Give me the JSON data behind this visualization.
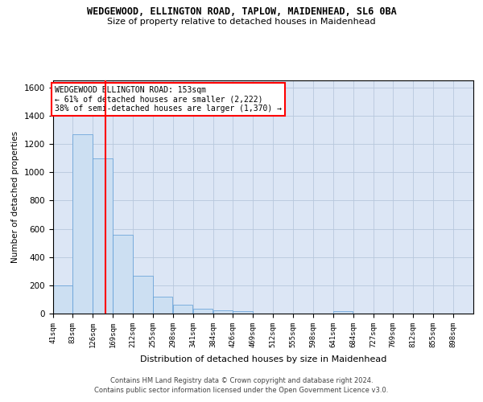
{
  "title": "WEDGEWOOD, ELLINGTON ROAD, TAPLOW, MAIDENHEAD, SL6 0BA",
  "subtitle": "Size of property relative to detached houses in Maidenhead",
  "xlabel": "Distribution of detached houses by size in Maidenhead",
  "ylabel": "Number of detached properties",
  "bar_color": "#ccdff2",
  "bar_edge_color": "#5b9bd5",
  "grid_color": "#b8c8dc",
  "bg_color": "#dce6f5",
  "annotation_box_text": "WEDGEWOOD ELLINGTON ROAD: 153sqm\n← 61% of detached houses are smaller (2,222)\n38% of semi-detached houses are larger (1,370) →",
  "annotation_box_color": "red",
  "vline_x": 153,
  "vline_color": "red",
  "footer1": "Contains HM Land Registry data © Crown copyright and database right 2024.",
  "footer2": "Contains public sector information licensed under the Open Government Licence v3.0.",
  "categories": [
    "41sqm",
    "83sqm",
    "126sqm",
    "169sqm",
    "212sqm",
    "255sqm",
    "298sqm",
    "341sqm",
    "384sqm",
    "426sqm",
    "469sqm",
    "512sqm",
    "555sqm",
    "598sqm",
    "641sqm",
    "684sqm",
    "727sqm",
    "769sqm",
    "812sqm",
    "855sqm",
    "898sqm"
  ],
  "bin_edges": [
    41,
    83,
    126,
    169,
    212,
    255,
    298,
    341,
    384,
    426,
    469,
    512,
    555,
    598,
    641,
    684,
    727,
    769,
    812,
    855,
    898,
    941
  ],
  "values": [
    200,
    1270,
    1100,
    555,
    265,
    120,
    60,
    35,
    25,
    15,
    0,
    0,
    0,
    0,
    15,
    0,
    0,
    0,
    0,
    0,
    0
  ],
  "ylim": [
    0,
    1650
  ],
  "yticks": [
    0,
    200,
    400,
    600,
    800,
    1000,
    1200,
    1400,
    1600
  ]
}
